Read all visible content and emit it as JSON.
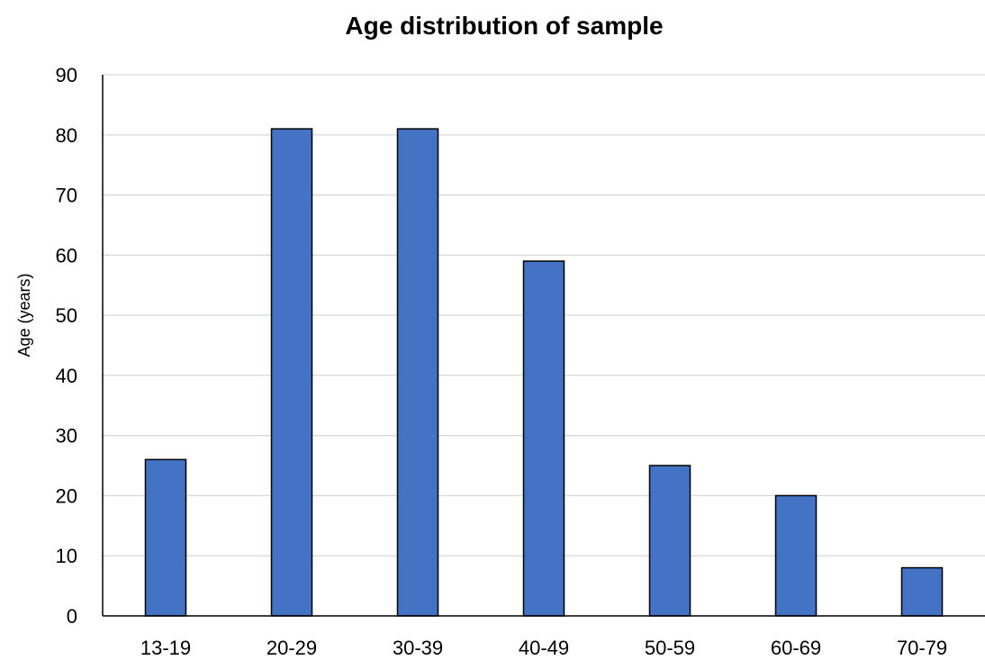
{
  "chart_data": {
    "type": "bar",
    "title": "Age distribution of sample",
    "xlabel": "",
    "ylabel": "Age (years)",
    "categories": [
      "13-19",
      "20-29",
      "30-39",
      "40-49",
      "50-59",
      "60-69",
      "70-79"
    ],
    "values": [
      26,
      81,
      81,
      59,
      25,
      20,
      8
    ],
    "ylim": [
      0,
      90
    ],
    "yticks": [
      0,
      10,
      20,
      30,
      40,
      50,
      60,
      70,
      80,
      90
    ],
    "grid": "horizontal",
    "colors": {
      "bar": "#4472C4",
      "bar_edge": "#000000",
      "grid": "#D9D9D9",
      "axis": "#000000"
    }
  }
}
